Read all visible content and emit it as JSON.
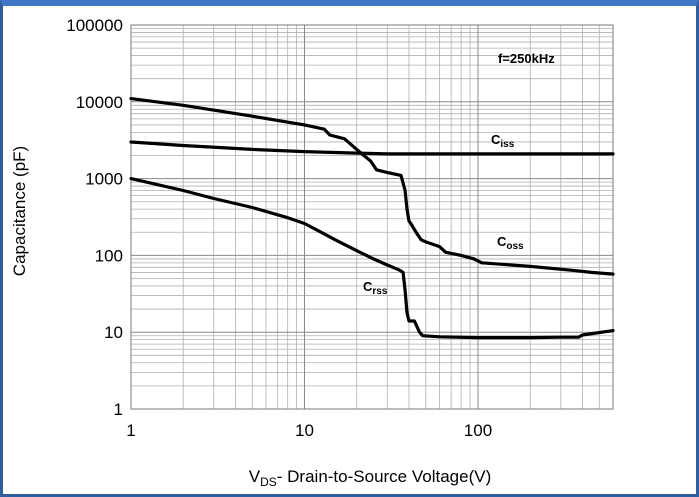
{
  "chart_data": {
    "type": "line",
    "title": "",
    "xlabel_main": "V",
    "xlabel_sub": "DS",
    "xlabel_rest": "- Drain-to-Source Voltage(V)",
    "ylabel": "Capacitance (pF)",
    "xscale": "log",
    "yscale": "log",
    "xlim": [
      1,
      600
    ],
    "ylim": [
      1,
      100000
    ],
    "grid": true,
    "x_ticks": [
      "1",
      "10",
      "100"
    ],
    "y_ticks": [
      "1",
      "10",
      "100",
      "1000",
      "10000",
      "100000"
    ],
    "annotation": "f=250kHz",
    "series": [
      {
        "name": "Ciss",
        "label_main": "C",
        "label_sub": "iss",
        "x": [
          1,
          2,
          5,
          10,
          20,
          30,
          50,
          100,
          200,
          600
        ],
        "y": [
          3000,
          2700,
          2400,
          2250,
          2150,
          2100,
          2100,
          2100,
          2100,
          2100
        ]
      },
      {
        "name": "Coss",
        "label_main": "C",
        "label_sub": "oss",
        "x": [
          1,
          2,
          5,
          10,
          13,
          14,
          17,
          20,
          22,
          24,
          26,
          30,
          36,
          38,
          39,
          40,
          41,
          44,
          47,
          50,
          60,
          65,
          80,
          95,
          105,
          200,
          350,
          450,
          600
        ],
        "y": [
          11000,
          9000,
          6500,
          5000,
          4400,
          3700,
          3300,
          2400,
          2000,
          1700,
          1300,
          1200,
          1100,
          700,
          400,
          280,
          260,
          200,
          160,
          150,
          130,
          110,
          100,
          90,
          80,
          72,
          64,
          60,
          57
        ]
      },
      {
        "name": "Crss",
        "label_main": "C",
        "label_sub": "rss",
        "x": [
          1,
          2,
          3,
          5,
          8,
          10,
          12,
          15,
          20,
          25,
          30,
          35,
          37,
          38,
          39,
          40,
          43,
          46,
          48,
          60,
          100,
          200,
          300,
          380,
          400,
          600
        ],
        "y": [
          1000,
          700,
          550,
          420,
          310,
          260,
          210,
          160,
          115,
          90,
          75,
          65,
          60,
          35,
          18,
          14,
          14,
          10,
          9,
          8.7,
          8.5,
          8.5,
          8.6,
          8.6,
          9.2,
          10.5
        ]
      }
    ]
  }
}
